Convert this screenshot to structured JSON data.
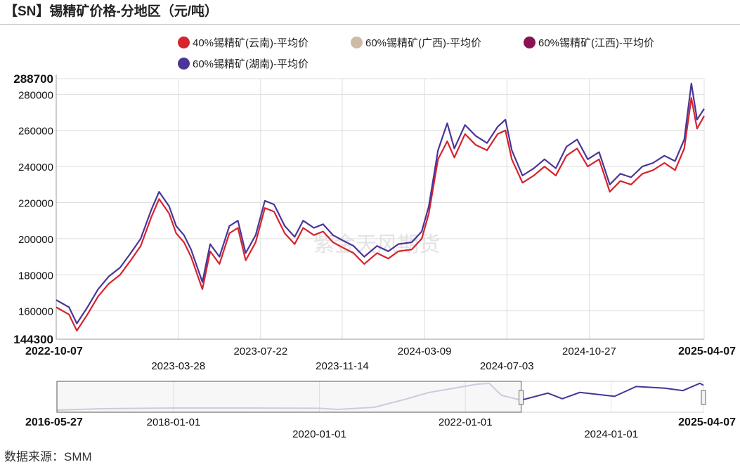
{
  "header": {
    "title": "【SN】锡精矿价格-分地区（元/吨）"
  },
  "source": "数据来源：SMM",
  "watermark": "紫金天风期货",
  "colors": {
    "yunnan_40": "#d7232c",
    "guangxi_60": "#cdbba3",
    "jiangxi_60": "#8a1356",
    "hunan_60": "#4b3597",
    "grid": "#dddddd",
    "navigator_bg": "#d8cfe6"
  },
  "chart_data": [
    {
      "type": "line",
      "title": "【SN】锡精矿价格-分地区（元/吨）",
      "ylim": [
        144300,
        288700
      ],
      "yticks": [
        "144300",
        "160000",
        "180000",
        "200000",
        "220000",
        "240000",
        "260000",
        "280000",
        "288700"
      ],
      "xlim": [
        "2022-10-07",
        "2025-04-07"
      ],
      "xticks_row1": [
        "2022-10-07",
        "2023-07-22",
        "2024-03-09",
        "2024-10-27",
        "2025-04-07"
      ],
      "xticks_row2": [
        "2023-03-28",
        "2023-11-14",
        "2024-07-03"
      ],
      "grid": true,
      "legend_position": "top",
      "series": [
        {
          "name": "40%锡精矿(云南)-平均价",
          "x": [
            "2022-10-07",
            "2022-10-25",
            "2022-11-05",
            "2022-11-20",
            "2022-12-05",
            "2022-12-20",
            "2023-01-05",
            "2023-01-20",
            "2023-02-03",
            "2023-02-18",
            "2023-03-01",
            "2023-03-15",
            "2023-03-25",
            "2023-04-05",
            "2023-04-15",
            "2023-05-01",
            "2023-05-12",
            "2023-05-25",
            "2023-06-08",
            "2023-06-20",
            "2023-07-01",
            "2023-07-15",
            "2023-07-28",
            "2023-08-10",
            "2023-08-25",
            "2023-09-08",
            "2023-09-20",
            "2023-10-05",
            "2023-10-18",
            "2023-11-01",
            "2023-11-15",
            "2023-11-30",
            "2023-12-15",
            "2024-01-02",
            "2024-01-18",
            "2024-02-01",
            "2024-02-20",
            "2024-03-05",
            "2024-03-15",
            "2024-03-28",
            "2024-04-10",
            "2024-04-20",
            "2024-05-05",
            "2024-05-20",
            "2024-06-05",
            "2024-06-20",
            "2024-07-01",
            "2024-07-10",
            "2024-07-25",
            "2024-08-10",
            "2024-08-25",
            "2024-09-10",
            "2024-09-25",
            "2024-10-10",
            "2024-10-25",
            "2024-11-10",
            "2024-11-25",
            "2024-12-10",
            "2024-12-25",
            "2025-01-10",
            "2025-01-25",
            "2025-02-10",
            "2025-02-25",
            "2025-03-10",
            "2025-03-20",
            "2025-03-28",
            "2025-04-07"
          ],
          "values": [
            162000,
            158000,
            149000,
            158000,
            168000,
            175000,
            180000,
            188000,
            196000,
            212000,
            222000,
            214000,
            203000,
            198000,
            190000,
            172000,
            193000,
            186000,
            203000,
            206000,
            188000,
            198000,
            217000,
            215000,
            203000,
            197000,
            206000,
            202000,
            204000,
            198000,
            195000,
            192000,
            186000,
            192000,
            189000,
            193000,
            194000,
            200000,
            214000,
            244000,
            254000,
            245000,
            258000,
            252000,
            249000,
            258000,
            260000,
            244000,
            231000,
            235000,
            240000,
            235000,
            246000,
            250000,
            240000,
            244000,
            226000,
            232000,
            230000,
            236000,
            238000,
            242000,
            238000,
            250000,
            278000,
            261000,
            268000
          ]
        },
        {
          "name": "60%锡精矿(广西)-平均价",
          "x": [
            "2022-10-07",
            "2022-12-05",
            "2023-02-18",
            "2023-05-01",
            "2023-07-28",
            "2023-10-18",
            "2024-01-18",
            "2024-04-10",
            "2024-07-01",
            "2024-09-25",
            "2024-12-25",
            "2025-03-20",
            "2025-04-07"
          ],
          "values": [
            166000,
            172000,
            216000,
            176000,
            221000,
            208000,
            193000,
            258000,
            264000,
            250000,
            234000,
            282000,
            272000
          ]
        },
        {
          "name": "60%锡精矿(江西)-平均价",
          "x": [
            "2022-10-07",
            "2022-12-05",
            "2023-02-18",
            "2023-05-01",
            "2023-07-28",
            "2023-10-18",
            "2024-01-18",
            "2024-04-10",
            "2024-07-01",
            "2024-09-25",
            "2024-12-25",
            "2025-03-20",
            "2025-04-07"
          ],
          "values": [
            166000,
            172000,
            216000,
            176000,
            221000,
            208000,
            193000,
            258000,
            264000,
            250000,
            234000,
            282000,
            272000
          ]
        },
        {
          "name": "60%锡精矿(湖南)-平均价",
          "x": [
            "2022-10-07",
            "2022-10-25",
            "2022-11-05",
            "2022-11-20",
            "2022-12-05",
            "2022-12-20",
            "2023-01-05",
            "2023-01-20",
            "2023-02-03",
            "2023-02-18",
            "2023-03-01",
            "2023-03-15",
            "2023-03-25",
            "2023-04-05",
            "2023-04-15",
            "2023-05-01",
            "2023-05-12",
            "2023-05-25",
            "2023-06-08",
            "2023-06-20",
            "2023-07-01",
            "2023-07-15",
            "2023-07-28",
            "2023-08-10",
            "2023-08-25",
            "2023-09-08",
            "2023-09-20",
            "2023-10-05",
            "2023-10-18",
            "2023-11-01",
            "2023-11-15",
            "2023-11-30",
            "2023-12-15",
            "2024-01-02",
            "2024-01-18",
            "2024-02-01",
            "2024-02-20",
            "2024-03-05",
            "2024-03-15",
            "2024-03-28",
            "2024-04-10",
            "2024-04-20",
            "2024-05-05",
            "2024-05-20",
            "2024-06-05",
            "2024-06-20",
            "2024-07-01",
            "2024-07-10",
            "2024-07-25",
            "2024-08-10",
            "2024-08-25",
            "2024-09-10",
            "2024-09-25",
            "2024-10-10",
            "2024-10-25",
            "2024-11-10",
            "2024-11-25",
            "2024-12-10",
            "2024-12-25",
            "2025-01-10",
            "2025-01-25",
            "2025-02-10",
            "2025-02-25",
            "2025-03-10",
            "2025-03-20",
            "2025-03-28",
            "2025-04-07"
          ],
          "values": [
            166000,
            162000,
            153000,
            162000,
            172000,
            179000,
            184000,
            192000,
            200000,
            216000,
            226000,
            218000,
            207000,
            202000,
            194000,
            176000,
            197000,
            190000,
            207000,
            210000,
            192000,
            202000,
            221000,
            219000,
            207000,
            201000,
            210000,
            206000,
            208000,
            202000,
            199000,
            196000,
            190000,
            196000,
            193000,
            197000,
            198000,
            204000,
            218000,
            249000,
            264000,
            250000,
            263000,
            257000,
            253000,
            262000,
            266000,
            249000,
            235000,
            239000,
            244000,
            239000,
            251000,
            255000,
            244000,
            248000,
            230000,
            236000,
            234000,
            240000,
            242000,
            246000,
            243000,
            255000,
            286000,
            266000,
            272000
          ]
        }
      ]
    },
    {
      "type": "line",
      "title": "",
      "xlim": [
        "2016-05-27",
        "2025-04-07"
      ],
      "xticks_row1": [
        "2016-05-27",
        "2018-01-01",
        "2022-01-01",
        "2025-04-07"
      ],
      "xticks_row2": [
        "2020-01-01",
        "2024-01-01"
      ],
      "selected_range": [
        "2022-10-07",
        "2025-04-07"
      ],
      "series": [
        {
          "name": "60%锡精矿(湖南)-平均价",
          "x": [
            "2016-05-27",
            "2017-01-01",
            "2018-01-01",
            "2019-01-01",
            "2020-01-01",
            "2020-04-01",
            "2020-10-01",
            "2021-03-01",
            "2021-07-01",
            "2021-11-01",
            "2022-03-01",
            "2022-05-01",
            "2022-07-01",
            "2022-10-07",
            "2023-02-18",
            "2023-05-01",
            "2023-07-28",
            "2024-01-18",
            "2024-05-05",
            "2024-09-25",
            "2024-12-25",
            "2025-03-20",
            "2025-04-07"
          ],
          "values": [
            95000,
            105000,
            110000,
            110000,
            108000,
            100000,
            115000,
            170000,
            220000,
            250000,
            280000,
            285000,
            200000,
            166000,
            216000,
            176000,
            221000,
            193000,
            263000,
            251000,
            234000,
            286000,
            272000
          ]
        }
      ]
    }
  ]
}
